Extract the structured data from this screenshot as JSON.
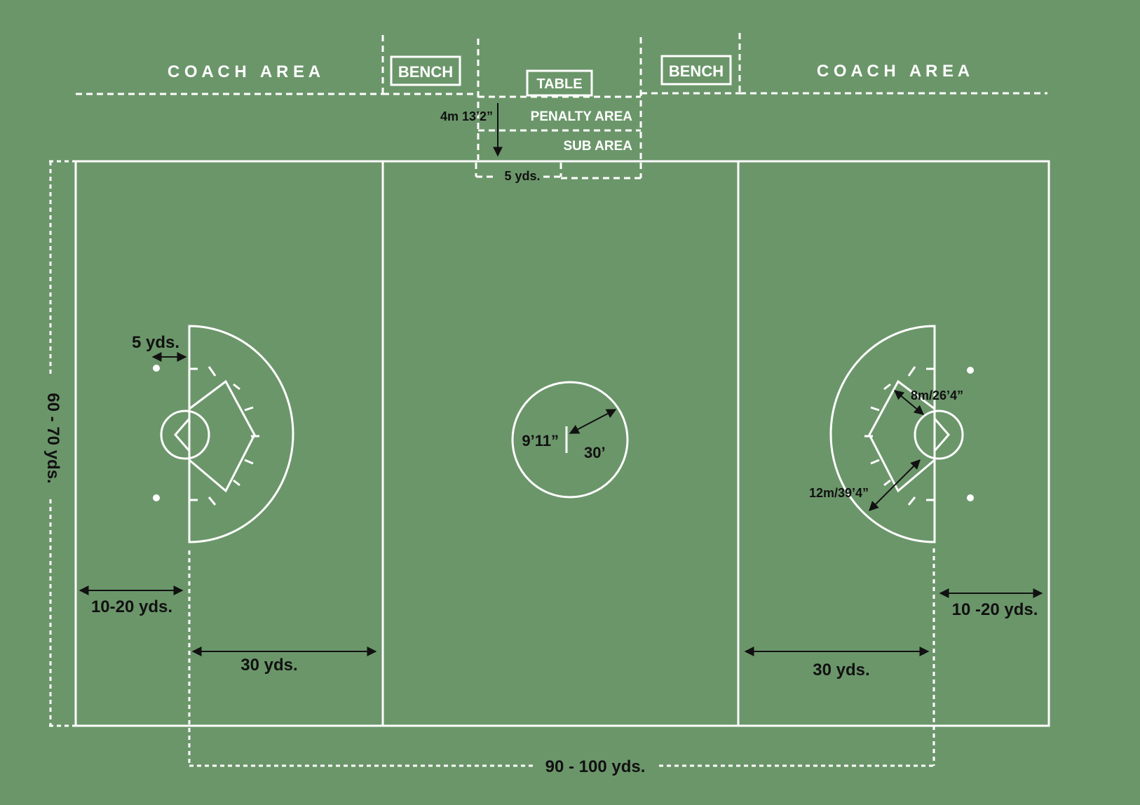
{
  "colors": {
    "field": "#6b966a",
    "lines": "#ffffff",
    "dimension": "#111111"
  },
  "labels": {
    "coach_area_left": "C O A C H   A R E A",
    "coach_area_right": "C O A C H   A R E A",
    "bench_left": "BENCH",
    "bench_right": "BENCH",
    "table": "TABLE",
    "penalty_area": "PENALTY AREA",
    "sub_area": "SUB AREA"
  },
  "dimensions": {
    "penalty_depth": "4m 13’2”",
    "sub_width": "5 yds.",
    "crease_offset": "5 yds.",
    "field_width": "60 - 70 yds.",
    "end_left": "10-20 yds.",
    "end_right": "10 -20 yds.",
    "attack_left": "30 yds.",
    "attack_right": "30 yds.",
    "field_length": "90 - 100 yds.",
    "center_radius_label": "9’11”",
    "center_diameter_label": "30’",
    "inner_arc_radius": "8m/26’4”",
    "outer_arc_radius": "12m/39’4”"
  }
}
